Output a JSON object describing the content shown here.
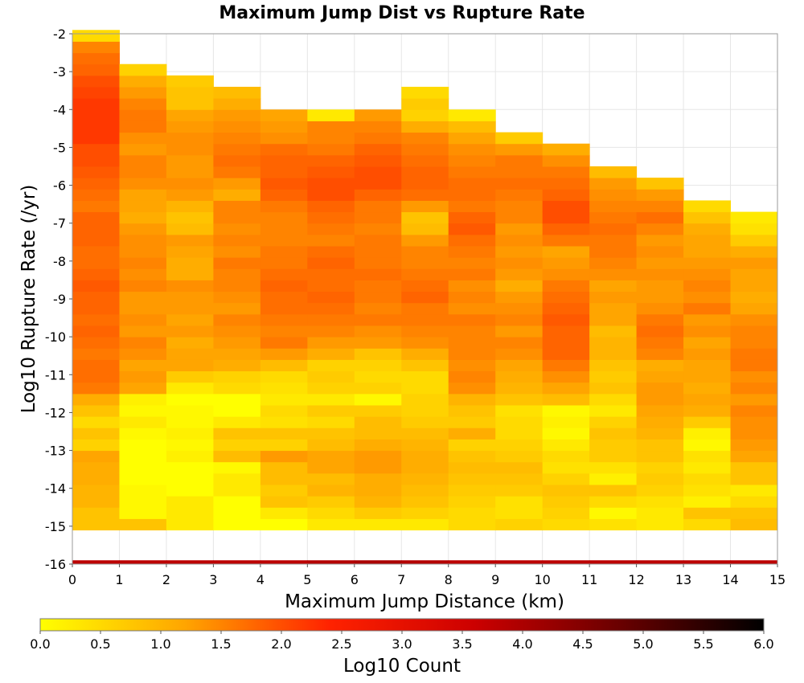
{
  "chart_data": {
    "type": "heatmap",
    "title": "Maximum Jump Dist vs Rupture Rate",
    "xlabel": "Maximum Jump Distance (km)",
    "ylabel": "Log10 Rupture Rate (/yr)",
    "xlim": [
      0,
      15
    ],
    "ylim": [
      -16,
      -2
    ],
    "x_ticks": [
      "0",
      "1",
      "2",
      "3",
      "4",
      "5",
      "6",
      "7",
      "8",
      "9",
      "10",
      "11",
      "12",
      "13",
      "14",
      "15"
    ],
    "y_ticks": [
      "-2",
      "-3",
      "-4",
      "-5",
      "-6",
      "-7",
      "-8",
      "-9",
      "-10",
      "-11",
      "-12",
      "-13",
      "-14",
      "-15",
      "-16"
    ],
    "grid": true,
    "x_bin_width": 1,
    "y_bin_width": 0.3,
    "y_bin_start": -15.1,
    "colorbar": {
      "label": "Log10 Count",
      "min": 0,
      "max": 6,
      "ticks": [
        "0.0",
        "0.5",
        "1.0",
        "1.5",
        "2.0",
        "2.5",
        "3.0",
        "3.5",
        "4.0",
        "4.5",
        "5.0",
        "5.5",
        "6.0"
      ],
      "colormap": "hot_reversed",
      "stops": [
        "#ffff00",
        "#ffa500",
        "#ff2200",
        "#cc0000",
        "#6a0000",
        "#000000"
      ]
    },
    "totals_row": {
      "y_range": [
        -16,
        -15.9
      ],
      "values": [
        3.8,
        3.8,
        3.8,
        3.8,
        3.8,
        3.9,
        4.0,
        3.9,
        3.8,
        3.8,
        3.8,
        3.8,
        3.8,
        3.8,
        3.8
      ]
    },
    "columns": [
      {
        "x": 0,
        "values": [
          0.8,
          0.8,
          1,
          1,
          1.1,
          1.1,
          1.2,
          0.6,
          0.8,
          0.5,
          0.8,
          1.1,
          1.6,
          1.7,
          1.7,
          1.6,
          1.7,
          1.8,
          1.7,
          1.8,
          1.8,
          1.9,
          1.8,
          1.7,
          1.7,
          1.8,
          1.8,
          1.8,
          1.6,
          1.7,
          1.8,
          1.9,
          2,
          2,
          2.2,
          2.2,
          2.2,
          2.2,
          2.1,
          2,
          1.8,
          1.7,
          1.5,
          0.5
        ]
      },
      {
        "x": 1,
        "values": [
          0.8,
          0.1,
          0.1,
          0.1,
          0,
          0,
          0,
          0,
          0.1,
          0.3,
          0.1,
          0.2,
          1.2,
          1.3,
          1.2,
          1.4,
          1.5,
          1.3,
          1.4,
          1.3,
          1.3,
          1.5,
          1.4,
          1.5,
          1.4,
          1.4,
          1.3,
          1.1,
          1.2,
          1.2,
          1.4,
          1.5,
          1.5,
          1.3,
          1.4,
          1.6,
          1.6,
          1.5,
          1.3,
          1.1,
          0.6
        ]
      },
      {
        "x": 2,
        "values": [
          0.3,
          0.3,
          0.3,
          0,
          0,
          0,
          0.2,
          0.1,
          0.2,
          0.1,
          0.1,
          0,
          0.3,
          0.7,
          1.2,
          1.2,
          1.1,
          1.3,
          1.2,
          1.3,
          1.3,
          1.4,
          1.1,
          1.1,
          1.2,
          1.3,
          0.9,
          0.8,
          1.0,
          1.3,
          1.4,
          1.3,
          1.3,
          1.4,
          1.4,
          1.3,
          1.2,
          0.8,
          0.8,
          0.7
        ]
      },
      {
        "x": 3,
        "values": [
          0,
          0,
          0,
          0.3,
          0.3,
          0.1,
          0.9,
          0.6,
          0.8,
          0.3,
          0,
          0,
          0.5,
          0.6,
          1.1,
          1.2,
          1.3,
          1.4,
          1.5,
          1.3,
          1.4,
          1.5,
          1.5,
          1.6,
          1.4,
          1.5,
          1.4,
          1.5,
          1.5,
          1.1,
          1.3,
          1.6,
          1.7,
          1.6,
          1.5,
          1.4,
          1.3,
          1.1,
          0.9
        ]
      },
      {
        "x": 4,
        "values": [
          0,
          0.3,
          0.8,
          0.7,
          0.9,
          0.9,
          1.3,
          0.6,
          0.8,
          0.4,
          0.5,
          0.3,
          0.4,
          0.5,
          0.9,
          1.3,
          1.6,
          1.5,
          1.6,
          1.7,
          1.7,
          1.8,
          1.7,
          1.6,
          1.6,
          1.5,
          1.5,
          1.5,
          1.6,
          1.8,
          1.9,
          1.8,
          1.8,
          1.7,
          1.4,
          1.3,
          1.2
        ]
      },
      {
        "x": 5,
        "values": [
          0.3,
          0.5,
          0.7,
          1.0,
          0.9,
          1.2,
          1.2,
          0.9,
          0.8,
          0.5,
          0.7,
          0.3,
          0.6,
          0.7,
          0.6,
          1.1,
          1.3,
          1.5,
          1.6,
          1.7,
          1.8,
          1.7,
          1.7,
          1.8,
          1.7,
          1.5,
          1.6,
          1.7,
          1.8,
          2.0,
          2.0,
          1.9,
          1.8,
          1.6,
          1.5,
          1.5,
          0.3
        ]
      },
      {
        "x": 6,
        "values": [
          0.3,
          0.7,
          1.0,
          1.1,
          1.1,
          1.3,
          1.3,
          1.1,
          0.9,
          0.9,
          0.7,
          0.1,
          0.6,
          0.5,
          0.6,
          0.8,
          1.3,
          1.4,
          1.6,
          1.5,
          1.6,
          1.6,
          1.7,
          1.6,
          1.6,
          1.6,
          1.5,
          1.6,
          1.6,
          1.8,
          2.0,
          2.0,
          1.9,
          1.8,
          1.6,
          1.5,
          1.3
        ]
      },
      {
        "x": 7,
        "values": [
          0.3,
          0.6,
          0.8,
          0.9,
          1.0,
          1.1,
          1.1,
          1.0,
          0.9,
          0.7,
          0.6,
          0.6,
          0.5,
          0.5,
          0.8,
          1.1,
          1.4,
          1.5,
          1.6,
          1.6,
          1.8,
          1.7,
          1.6,
          1.5,
          1.5,
          1.3,
          0.9,
          0.8,
          1.3,
          1.7,
          1.8,
          1.8,
          1.7,
          1.6,
          1.5,
          1.1,
          0.6,
          0.7,
          0.5
        ]
      },
      {
        "x": 8,
        "values": [
          0.5,
          0.5,
          0.6,
          0.7,
          0.8,
          0.9,
          0.8,
          0.6,
          1.1,
          0.7,
          0.8,
          1.0,
          1.4,
          1.5,
          1.4,
          1.5,
          1.5,
          1.5,
          1.6,
          1.4,
          1.5,
          1.4,
          1.6,
          1.5,
          1.6,
          1.7,
          1.9,
          1.8,
          1.6,
          1.7,
          1.7,
          1.6,
          1.5,
          1.4,
          1.2,
          0.9,
          0.3
        ]
      },
      {
        "x": 9,
        "values": [
          0.6,
          0.4,
          0.4,
          0.7,
          0.8,
          0.9,
          0.7,
          0.6,
          0.5,
          0.5,
          0.4,
          0.8,
          1.0,
          1.1,
          1.2,
          1.4,
          1.5,
          1.3,
          1.5,
          1.4,
          1.3,
          1.1,
          1.3,
          1.4,
          1.3,
          1.4,
          1.3,
          1.5,
          1.5,
          1.6,
          1.7,
          1.6,
          1.6,
          1.3,
          0.7
        ]
      },
      {
        "x": 10,
        "values": [
          0.5,
          0.6,
          0.7,
          0.8,
          0.6,
          0.4,
          0.5,
          0.3,
          0.1,
          0.2,
          0.1,
          0.9,
          1.2,
          1.4,
          1.6,
          1.8,
          1.8,
          1.8,
          1.9,
          1.8,
          1.7,
          1.6,
          1.4,
          1.3,
          1.2,
          1.6,
          1.8,
          2.0,
          2.0,
          1.8,
          1.7,
          1.6,
          1.4,
          1.1
        ]
      },
      {
        "x": 11,
        "values": [
          0.4,
          0.1,
          0.5,
          0.8,
          0.2,
          0.4,
          0.7,
          0.7,
          0.8,
          0.6,
          0.3,
          0.5,
          0.8,
          0.7,
          0.8,
          1.0,
          1.0,
          0.9,
          1.2,
          1.2,
          1.3,
          1.2,
          1.4,
          1.5,
          1.6,
          1.6,
          1.7,
          1.6,
          1.5,
          1.4,
          1.3,
          0.9
        ]
      },
      {
        "x": 12,
        "values": [
          0.3,
          0.3,
          0.4,
          0.6,
          0.7,
          0.6,
          0.8,
          0.8,
          1.0,
          1.1,
          1.2,
          1.3,
          1.3,
          1.2,
          1.1,
          1.5,
          1.6,
          1.7,
          1.6,
          1.4,
          1.3,
          1.3,
          1.4,
          1.3,
          1.4,
          1.3,
          1.5,
          1.7,
          1.5,
          1.3,
          0.8
        ]
      },
      {
        "x": 13,
        "values": [
          0.5,
          0.8,
          0.2,
          0.4,
          0.5,
          0.3,
          0.4,
          0.1,
          0.2,
          0.7,
          1.1,
          1.2,
          1.1,
          1.2,
          1.2,
          1.3,
          1.2,
          1.4,
          1.3,
          1.6,
          1.4,
          1.5,
          1.4,
          1.3,
          1.2,
          1.2,
          1.1,
          0.8,
          0.5
        ]
      },
      {
        "x": 14,
        "values": [
          0.9,
          0.8,
          0.5,
          0.3,
          0.8,
          0.8,
          1.2,
          1.3,
          1.4,
          1.4,
          1.5,
          1.3,
          1.5,
          1.4,
          1.6,
          1.6,
          1.5,
          1.5,
          1.4,
          1.2,
          1.1,
          1.2,
          1.2,
          1.3,
          1.1,
          0.7,
          0.4,
          0.3
        ]
      }
    ]
  }
}
